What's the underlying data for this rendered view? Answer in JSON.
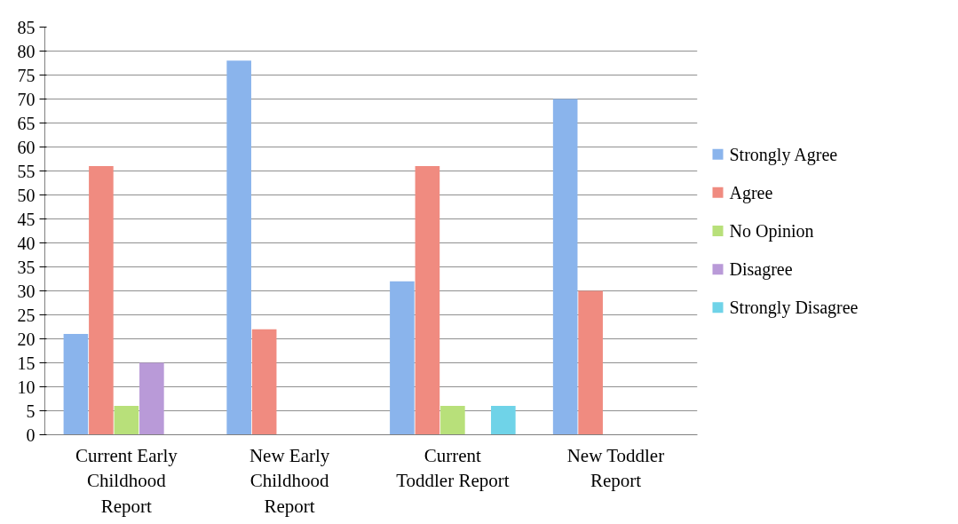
{
  "chart_data": {
    "type": "bar",
    "categories": [
      "Current Early Childhood Report",
      "New Early Childhood Report",
      "Current Toddler Report",
      "New Toddler Report"
    ],
    "series": [
      {
        "name": "Strongly Agree",
        "color": "#8ab4ec",
        "values": [
          21,
          78,
          32,
          70
        ]
      },
      {
        "name": "Agree",
        "color": "#f08b80",
        "values": [
          56,
          22,
          56,
          30
        ]
      },
      {
        "name": "No Opinion",
        "color": "#b8e07a",
        "values": [
          6,
          null,
          6,
          null
        ]
      },
      {
        "name": "Disagree",
        "color": "#b99ad8",
        "values": [
          15,
          null,
          null,
          null
        ]
      },
      {
        "name": "Strongly Disagree",
        "color": "#6fd3e8",
        "values": [
          null,
          null,
          6,
          null
        ]
      }
    ],
    "ylim": [
      0,
      85
    ],
    "yticks": [
      0,
      5,
      10,
      15,
      20,
      25,
      30,
      35,
      40,
      45,
      50,
      55,
      60,
      65,
      70,
      75,
      80,
      85
    ],
    "grid": "y",
    "legend": "right"
  }
}
